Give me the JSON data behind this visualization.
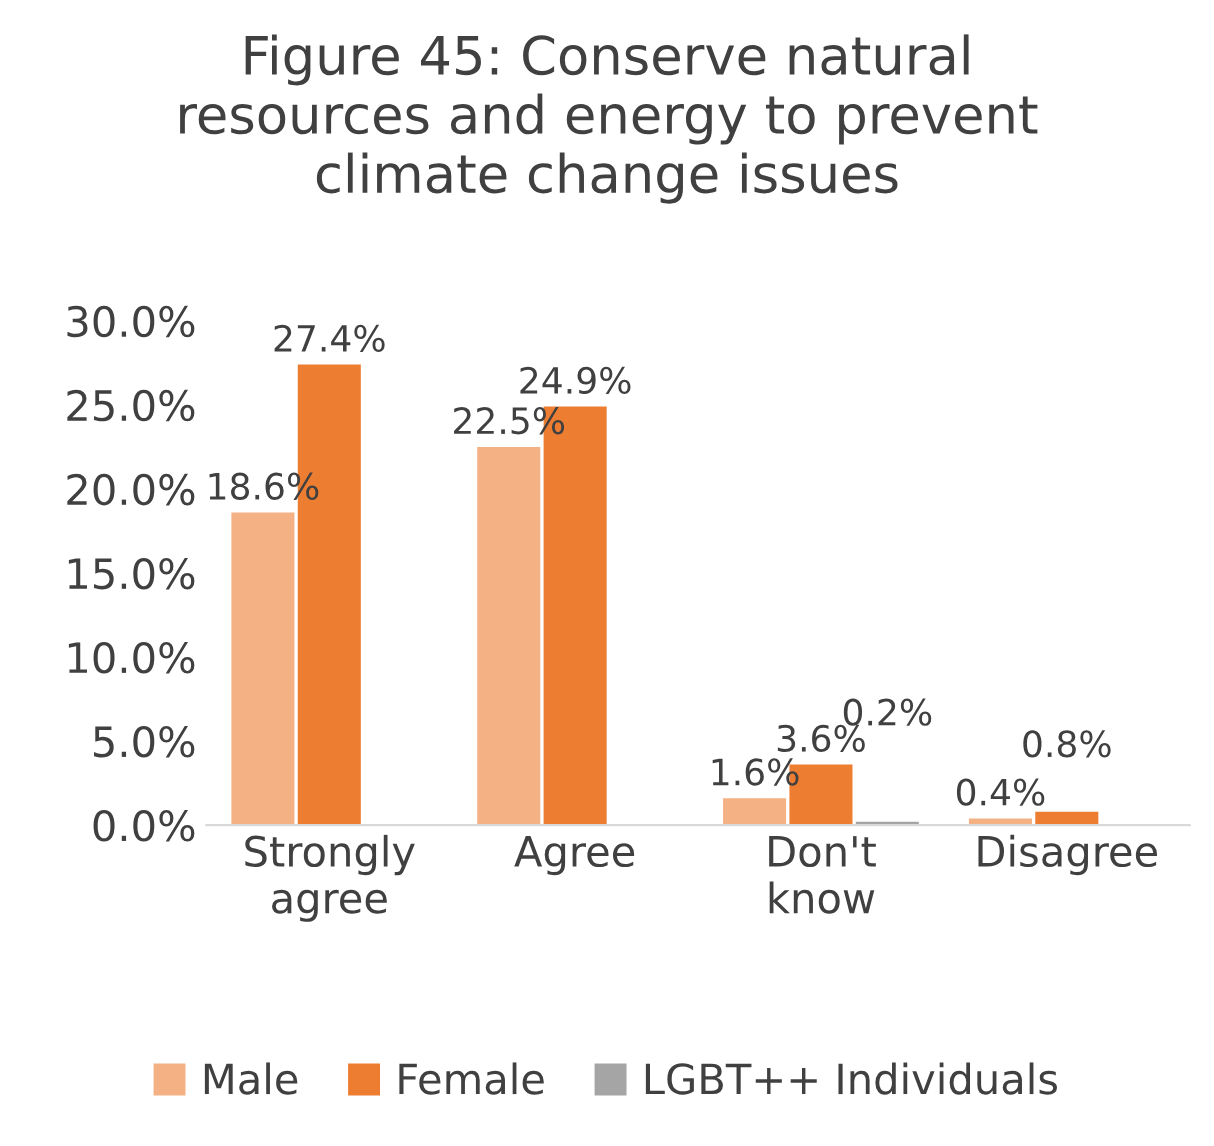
{
  "chart_data": {
    "type": "bar",
    "title": "Figure 45: Conserve natural\nresources and energy to prevent\nclimate change issues",
    "categories": [
      "Strongly\nagree",
      "Agree",
      "Don't\nknow",
      "Disagree"
    ],
    "series": [
      {
        "name": "Male",
        "color": "#f4b183",
        "values": [
          18.6,
          22.5,
          1.6,
          0.4
        ],
        "value_labels": [
          "18.6%",
          "22.5%",
          "1.6%",
          "0.4%"
        ]
      },
      {
        "name": "Female",
        "color": "#ed7d31",
        "values": [
          27.4,
          24.9,
          3.6,
          0.8
        ],
        "value_labels": [
          "27.4%",
          "24.9%",
          "3.6%",
          "0.8%"
        ]
      },
      {
        "name": "LGBT++ Individuals",
        "color": "#a5a5a5",
        "values": [
          null,
          null,
          0.2,
          null
        ],
        "value_labels": [
          null,
          null,
          "0.2%",
          null
        ]
      }
    ],
    "ylim": [
      0,
      30
    ],
    "yticks": [
      {
        "value": 0,
        "label": "0.0%"
      },
      {
        "value": 5,
        "label": "5.0%"
      },
      {
        "value": 10,
        "label": "10.0%"
      },
      {
        "value": 15,
        "label": "15.0%"
      },
      {
        "value": 20,
        "label": "20.0%"
      },
      {
        "value": 25,
        "label": "25.0%"
      },
      {
        "value": 30,
        "label": "30.0%"
      }
    ],
    "grid": false,
    "legend": "bottom"
  }
}
